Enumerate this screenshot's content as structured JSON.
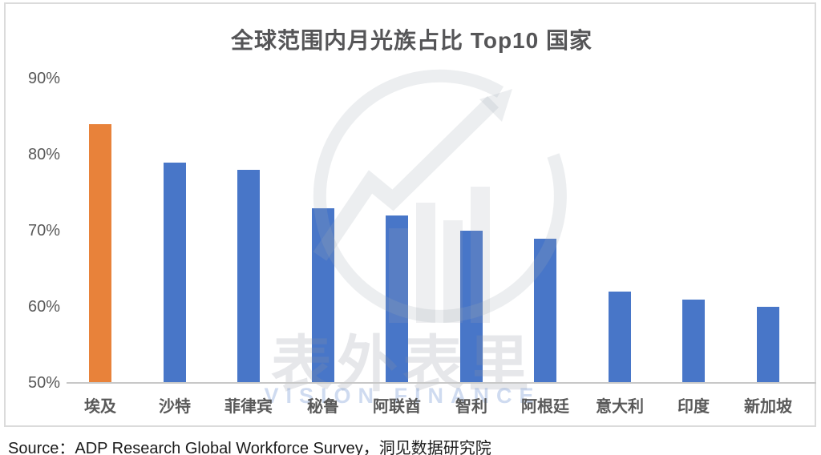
{
  "title": "全球范围内月光族占比 Top10 国家",
  "source_line": "Source：ADP Research Global Workforce Survey，洞见数据研究院",
  "watermark": {
    "cn": "表外表里",
    "en": "VISION FINANCE"
  },
  "colors": {
    "highlight_bar": "#E8823A",
    "default_bar": "#4876C8",
    "axis_text": "#595959",
    "title_text": "#555557",
    "axis_line": "#C8C8C8",
    "frame_border": "#DBDBDB"
  },
  "chart_data": {
    "type": "bar",
    "title": "全球范围内月光族占比 Top10 国家",
    "categories": [
      "埃及",
      "沙特",
      "菲律宾",
      "秘鲁",
      "阿联酋",
      "智利",
      "阿根廷",
      "意大利",
      "印度",
      "新加坡"
    ],
    "values": [
      84,
      79,
      78,
      73,
      72,
      70,
      69,
      62,
      61,
      60
    ],
    "unit": "%",
    "highlight_index": 0,
    "ylim": [
      50,
      90
    ],
    "yticks": [
      90,
      80,
      70,
      60,
      50
    ],
    "ytick_labels": [
      "90%",
      "80%",
      "70%",
      "60%",
      "50%"
    ],
    "grid": false,
    "legend": null,
    "xlabel": "",
    "ylabel": ""
  }
}
